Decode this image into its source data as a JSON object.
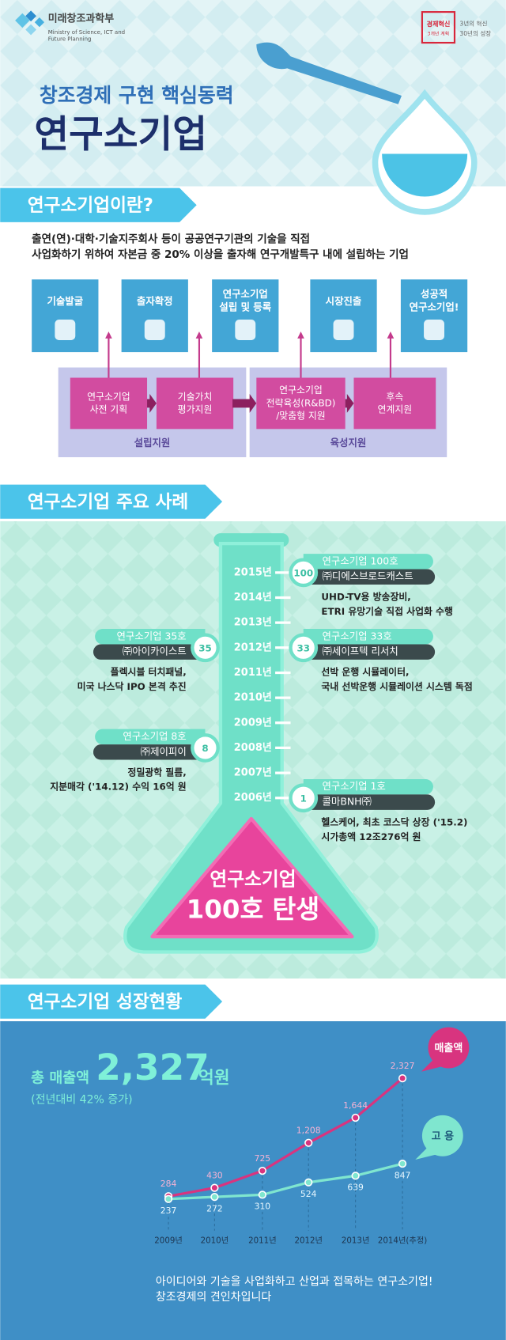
{
  "header": {
    "ministry": "미래창조과학부",
    "ministry_en": [
      "Ministry of Science, ICT and",
      "Future Planning"
    ],
    "badge": [
      "경제혁신",
      "3개년 계획"
    ],
    "slogan": [
      "3년의 혁신",
      "30년의 성장"
    ],
    "subtitle": "창조경제 구현 핵심동력",
    "title": "연구소기업"
  },
  "definition": {
    "heading": "연구소기업이란?",
    "text": [
      "출연(연)·대학·기술지주회사 등이 공공연구기관의 기술을 직접",
      "사업화하기 위하여 자본금 중 20% 이상을 출자해 연구개발특구 내에 설립하는 기업"
    ],
    "steps": [
      [
        "기술발굴"
      ],
      [
        "출자확정"
      ],
      [
        "연구소기업",
        "설립 및 등록"
      ],
      [
        "시장진출"
      ],
      [
        "성공적",
        "연구소기업!"
      ]
    ],
    "supports": [
      {
        "label": "설립지원",
        "items": [
          [
            "연구소기업",
            "사전 기획"
          ],
          [
            "기술가치",
            "평가지원"
          ]
        ]
      },
      {
        "label": "육성지원",
        "items": [
          [
            "연구소기업",
            "전략육성(R&BD)",
            "/맞춤형 지원"
          ],
          [
            "후속",
            "연계지원"
          ]
        ]
      }
    ]
  },
  "cases": {
    "heading": "연구소기업 주요 사례",
    "years": [
      "2015년",
      "2014년",
      "2013년",
      "2012년",
      "2011년",
      "2010년",
      "2009년",
      "2008년",
      "2007년",
      "2006년"
    ],
    "items": [
      {
        "badge": "100",
        "title": "연구소기업 100호",
        "company": "㈜디에스브로드캐스트",
        "desc": [
          "UHD-TV용 방송장비,",
          "ETRI 유망기술 직접 사업화 수행"
        ]
      },
      {
        "badge": "33",
        "title": "연구소기업 33호",
        "company": "㈜세이프텍 리서치",
        "desc": [
          "선박 운행 시뮬레이터,",
          "국내 선박운행 시뮬레이션 시스템 독점"
        ]
      },
      {
        "badge": "1",
        "title": "연구소기업 1호",
        "company": "콜마BNH㈜",
        "desc": [
          "헬스케어, 최초 코스닥 상장 ('15.2)",
          "시가총액 12조276억 원"
        ]
      },
      {
        "badge": "35",
        "title": "연구소기업 35호",
        "company": "㈜아이카이스트",
        "desc": [
          "플렉시블 터치패널,",
          "미국 나스닥 IPO 본격 추진"
        ]
      },
      {
        "badge": "8",
        "title": "연구소기업 8호",
        "company": "㈜제이피이",
        "desc": [
          "정밀광학 필름,",
          "지분매각 ('14.12) 수익 16억 원"
        ]
      }
    ],
    "flask": [
      "연구소기업",
      "100호 탄생"
    ]
  },
  "growth": {
    "heading": "연구소기업 성장현황",
    "total_label": "총 매출액",
    "total_value": "2,327",
    "total_unit": "억원",
    "change": "(전년대비 42% 증가)",
    "closing": [
      "아이디어와 기술을 사업화하고 산업과 접목하는 연구소기업!",
      "창조경제의 견인차입니다"
    ]
  },
  "chart_data": {
    "type": "line",
    "categories": [
      "2009년",
      "2010년",
      "2011년",
      "2012년",
      "2013년",
      "2014년(추정)"
    ],
    "series": [
      {
        "name": "매출액",
        "color": "#d8347f",
        "values": [
          284,
          430,
          725,
          1208,
          1644,
          2327
        ],
        "value_labels": [
          "284",
          "430",
          "725",
          "1,208",
          "1,644",
          "2,327"
        ]
      },
      {
        "name": "고 용",
        "color": "#7fe6cf",
        "values": [
          237,
          272,
          310,
          524,
          639,
          847
        ]
      }
    ],
    "ylim": [
      0,
      2500
    ]
  }
}
